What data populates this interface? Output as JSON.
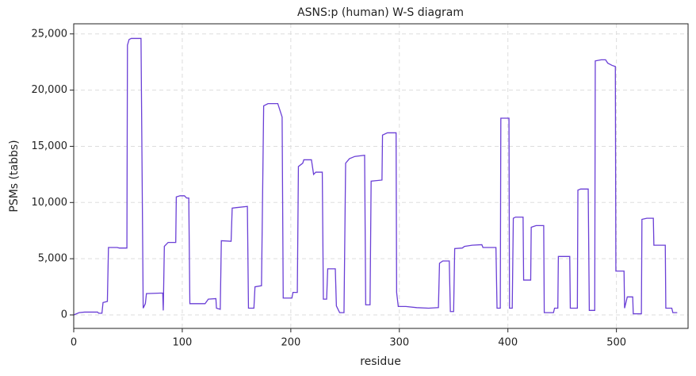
{
  "chart_data": {
    "type": "line",
    "title": "ASNS:p (human) W-S diagram",
    "xlabel": "residue",
    "ylabel": "PSMs (tabbs)",
    "color": "#6a3fd6",
    "grid": true,
    "xlim": [
      0,
      566
    ],
    "ylim": [
      -1200,
      25900
    ],
    "xticks": [
      0,
      100,
      200,
      300,
      400,
      500
    ],
    "yticks": [
      0,
      {
        "value": 5000,
        "label": "5,000"
      },
      {
        "value": 10000,
        "label": "10,000"
      },
      {
        "value": 15000,
        "label": "15,000"
      },
      {
        "value": 20000,
        "label": "20,000"
      },
      {
        "value": 25000,
        "label": "25,000"
      }
    ],
    "x": [
      0,
      5,
      10,
      22,
      23,
      26,
      27,
      31,
      32,
      40,
      42,
      49,
      49.5,
      51,
      53,
      62,
      64,
      66,
      67,
      82,
      82.5,
      83.5,
      87,
      94,
      94.5,
      98,
      102,
      104,
      106,
      107,
      121,
      124,
      131,
      131.5,
      135,
      136,
      145,
      146,
      150,
      160,
      161,
      166,
      167,
      173,
      175,
      179,
      188,
      191,
      192,
      193,
      201,
      202,
      206,
      207,
      211,
      212,
      219,
      221,
      223,
      229,
      230,
      233,
      234,
      241,
      242,
      245,
      249,
      250.5,
      254,
      259,
      268,
      269,
      273,
      274,
      284,
      284.5,
      289,
      297,
      297.5,
      299,
      306,
      316,
      327,
      336,
      337,
      340,
      346,
      347,
      350,
      351,
      358,
      360,
      367,
      376,
      377,
      389,
      390,
      393,
      393.5,
      401,
      401.5,
      404,
      405,
      407,
      414,
      414.5,
      421,
      421.5,
      426,
      433,
      433.5,
      442,
      443,
      446,
      446.5,
      457,
      457.5,
      464,
      464.5,
      467,
      474,
      475,
      480,
      480.5,
      486,
      490,
      492,
      496,
      499,
      499.5,
      507,
      507.5,
      510,
      515,
      515.5,
      523,
      523.5,
      528,
      534,
      534.5,
      545,
      545.5,
      551,
      552,
      556
    ],
    "values": [
      0,
      200,
      250,
      250,
      150,
      150,
      1100,
      1200,
      6000,
      6000,
      5950,
      5950,
      24000,
      24500,
      24600,
      24600,
      600,
      1000,
      1900,
      1950,
      400,
      6100,
      6450,
      6450,
      10500,
      10600,
      10600,
      10400,
      10400,
      1000,
      1000,
      1400,
      1450,
      600,
      500,
      6600,
      6550,
      9500,
      9550,
      9650,
      600,
      600,
      2500,
      2600,
      18600,
      18800,
      18800,
      17900,
      17600,
      1500,
      1500,
      2000,
      2000,
      13200,
      13500,
      13800,
      13800,
      12500,
      12700,
      12700,
      1400,
      1400,
      4100,
      4100,
      800,
      200,
      200,
      13500,
      13900,
      14100,
      14200,
      900,
      900,
      11900,
      12000,
      16000,
      16200,
      16200,
      2000,
      750,
      750,
      650,
      600,
      650,
      4600,
      4800,
      4800,
      300,
      300,
      5900,
      5950,
      6100,
      6200,
      6250,
      6000,
      6000,
      600,
      600,
      17500,
      17500,
      600,
      600,
      8600,
      8700,
      8700,
      3100,
      3100,
      7800,
      7950,
      7950,
      200,
      200,
      600,
      600,
      5200,
      5200,
      600,
      600,
      11100,
      11200,
      11200,
      400,
      400,
      22600,
      22700,
      22700,
      22400,
      22200,
      22100,
      3900,
      3900,
      600,
      1600,
      1600,
      100,
      100,
      8500,
      8600,
      8600,
      6200,
      6200,
      600,
      600,
      200,
      200
    ]
  }
}
